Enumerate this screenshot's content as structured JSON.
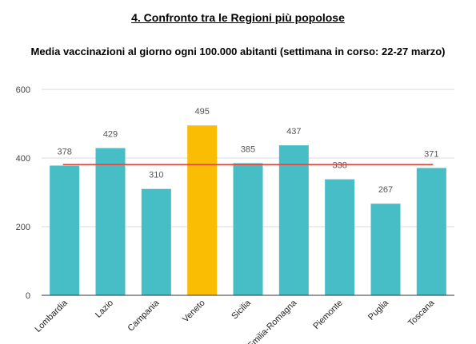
{
  "page": {
    "heading": "4. Confronto tra le Regioni più popolose"
  },
  "chart_data": {
    "type": "bar",
    "title": "Media vaccinazioni al giorno ogni 100.000 abitanti (settimana in corso: 22-27 marzo)",
    "xlabel": "",
    "ylabel": "",
    "categories": [
      "Lombardia",
      "Lazio",
      "Campania",
      "Veneto",
      "Sicilia",
      "Emilia-Romagna",
      "Piemonte",
      "Puglia",
      "Toscana"
    ],
    "values": [
      378,
      429,
      310,
      495,
      385,
      437,
      338,
      267,
      371
    ],
    "data_labels": [
      "378",
      "429",
      "310",
      "495",
      "385",
      "437",
      "338",
      "267",
      "371"
    ],
    "highlight_index": 3,
    "reference_line": 381,
    "ylim": [
      0,
      600
    ],
    "yticks": [
      0,
      200,
      400,
      600
    ],
    "ytick_labels": [
      "0",
      "200",
      "400",
      "600"
    ],
    "grid": true,
    "legend": "none",
    "colors": {
      "bar": "#47BDC6",
      "highlight": "#FBBC04",
      "reference_line": "#E8453C",
      "grid": "#d9d9d9",
      "axis": "#333333"
    }
  }
}
